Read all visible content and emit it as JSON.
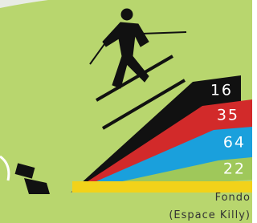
{
  "slopes": [
    {
      "count": 16,
      "color": "#111111"
    },
    {
      "count": 35,
      "color": "#d22a2a"
    },
    {
      "count": 64,
      "color": "#1aa0dc"
    },
    {
      "count": 22,
      "color": "#9fc85a"
    }
  ],
  "crosscountry": {
    "label": "Fondo",
    "sublabel": "(Espace Killy)",
    "color": "#f2d21a"
  }
}
